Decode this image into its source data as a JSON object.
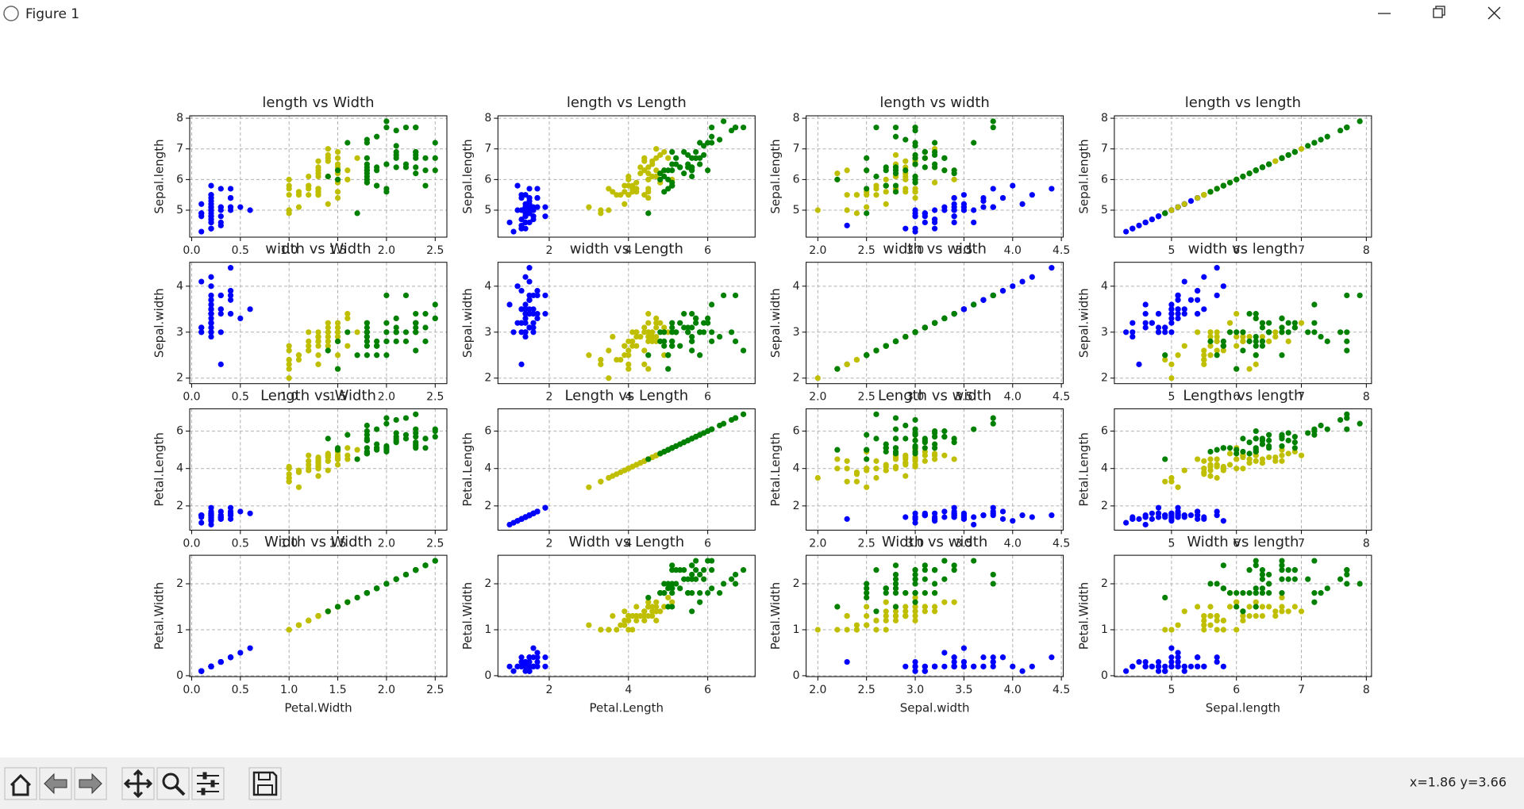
{
  "window": {
    "title": "Figure 1"
  },
  "toolbar": {
    "status": "x=1.86 y=3.66"
  },
  "colors": [
    "#0000ff",
    "#bfbf00",
    "#008000"
  ],
  "variables": [
    {
      "name": "Sepal.length",
      "series": [
        [
          5.1,
          4.9,
          4.7,
          4.6,
          5.0,
          5.4,
          4.6,
          5.0,
          4.4,
          4.9,
          5.4,
          4.8,
          4.8,
          4.3,
          5.8,
          5.7,
          5.4,
          5.1,
          5.7,
          5.1,
          5.4,
          5.1,
          4.6,
          5.1,
          4.8,
          5.0,
          5.0,
          5.2,
          5.2,
          4.7,
          4.8,
          5.4,
          5.2,
          5.5,
          4.9,
          5.0,
          5.5,
          4.9,
          4.4,
          5.1,
          5.0,
          4.5,
          4.4,
          5.0,
          5.1,
          4.8,
          5.1,
          4.6,
          5.3,
          5.0
        ],
        [
          7.0,
          6.4,
          6.9,
          5.5,
          6.5,
          5.7,
          6.3,
          4.9,
          6.6,
          5.2,
          5.0,
          5.9,
          6.0,
          6.1,
          5.6,
          6.7,
          5.6,
          5.8,
          6.2,
          5.6,
          5.9,
          6.1,
          6.3,
          6.1,
          6.4,
          6.6,
          6.8,
          6.7,
          6.0,
          5.7,
          5.5,
          5.5,
          5.8,
          6.0,
          5.4,
          6.0,
          6.7,
          6.3,
          5.6,
          5.5,
          5.5,
          6.1,
          5.8,
          5.0,
          5.6,
          5.7,
          5.7,
          6.2,
          5.1,
          5.7
        ],
        [
          6.3,
          5.8,
          7.1,
          6.3,
          6.5,
          7.6,
          4.9,
          7.3,
          6.7,
          7.2,
          6.5,
          6.4,
          6.8,
          5.7,
          5.8,
          6.4,
          6.5,
          7.7,
          7.7,
          6.0,
          6.9,
          5.6,
          7.7,
          6.3,
          6.7,
          7.2,
          6.2,
          6.1,
          6.4,
          7.2,
          7.4,
          7.9,
          6.4,
          6.3,
          6.1,
          7.7,
          6.3,
          6.4,
          6.0,
          6.9,
          6.7,
          6.9,
          5.8,
          6.8,
          6.7,
          6.7,
          6.3,
          6.5,
          6.2,
          5.9
        ]
      ]
    },
    {
      "name": "Sepal.width",
      "series": [
        [
          3.5,
          3.0,
          3.2,
          3.1,
          3.6,
          3.9,
          3.4,
          3.4,
          2.9,
          3.1,
          3.7,
          3.4,
          3.0,
          3.0,
          4.0,
          4.4,
          3.9,
          3.5,
          3.8,
          3.8,
          3.4,
          3.7,
          3.6,
          3.3,
          3.4,
          3.0,
          3.4,
          3.5,
          3.4,
          3.2,
          3.1,
          3.4,
          4.1,
          4.2,
          3.1,
          3.2,
          3.5,
          3.1,
          3.0,
          3.4,
          3.5,
          2.3,
          3.2,
          3.5,
          3.8,
          3.0,
          3.8,
          3.2,
          3.7,
          3.3
        ],
        [
          3.2,
          3.2,
          3.1,
          2.3,
          2.8,
          2.8,
          3.3,
          2.4,
          2.9,
          2.7,
          2.0,
          3.0,
          2.2,
          2.9,
          2.9,
          3.1,
          3.0,
          2.7,
          2.2,
          2.5,
          3.2,
          2.8,
          2.5,
          2.8,
          2.9,
          3.0,
          2.8,
          3.0,
          2.9,
          2.6,
          2.4,
          2.4,
          2.7,
          2.7,
          3.0,
          3.4,
          3.1,
          2.3,
          3.0,
          2.5,
          2.6,
          3.0,
          2.6,
          2.3,
          2.7,
          3.0,
          2.9,
          2.9,
          2.5,
          2.8
        ],
        [
          3.3,
          2.7,
          3.0,
          2.9,
          3.0,
          3.0,
          2.5,
          2.9,
          2.5,
          3.6,
          3.2,
          2.7,
          3.0,
          2.5,
          2.8,
          3.2,
          3.0,
          3.8,
          2.6,
          2.2,
          3.2,
          2.8,
          2.8,
          2.7,
          3.3,
          3.2,
          2.8,
          3.0,
          2.8,
          3.0,
          2.8,
          3.8,
          2.8,
          2.8,
          2.6,
          3.0,
          3.4,
          3.1,
          3.0,
          3.1,
          3.1,
          3.1,
          2.7,
          3.2,
          3.3,
          3.0,
          2.5,
          3.0,
          3.4,
          3.0
        ]
      ]
    },
    {
      "name": "Petal.Length",
      "series": [
        [
          1.4,
          1.4,
          1.3,
          1.5,
          1.4,
          1.7,
          1.4,
          1.5,
          1.4,
          1.5,
          1.5,
          1.6,
          1.4,
          1.1,
          1.2,
          1.5,
          1.3,
          1.4,
          1.7,
          1.5,
          1.7,
          1.5,
          1.0,
          1.7,
          1.9,
          1.6,
          1.6,
          1.5,
          1.4,
          1.6,
          1.6,
          1.5,
          1.5,
          1.4,
          1.5,
          1.2,
          1.3,
          1.5,
          1.3,
          1.5,
          1.3,
          1.3,
          1.3,
          1.6,
          1.9,
          1.4,
          1.6,
          1.4,
          1.5,
          1.4
        ],
        [
          4.7,
          4.5,
          4.9,
          4.0,
          4.6,
          4.5,
          4.7,
          3.3,
          4.6,
          3.9,
          3.5,
          4.2,
          4.0,
          4.7,
          3.6,
          4.4,
          4.5,
          4.1,
          4.5,
          3.9,
          4.8,
          4.0,
          4.9,
          4.7,
          4.3,
          4.4,
          4.8,
          5.0,
          4.5,
          3.5,
          3.8,
          3.7,
          3.9,
          5.1,
          4.5,
          4.5,
          4.7,
          4.4,
          4.1,
          4.0,
          4.4,
          4.6,
          4.0,
          3.3,
          4.2,
          4.2,
          4.2,
          4.3,
          3.0,
          4.1
        ],
        [
          6.0,
          5.1,
          5.9,
          5.6,
          5.8,
          6.6,
          4.5,
          6.3,
          5.8,
          6.1,
          5.1,
          5.3,
          5.5,
          5.0,
          5.1,
          5.3,
          5.5,
          6.7,
          6.9,
          5.0,
          5.7,
          4.9,
          6.7,
          4.9,
          5.7,
          6.0,
          4.8,
          4.9,
          5.6,
          5.8,
          6.1,
          6.4,
          5.6,
          5.1,
          5.6,
          6.1,
          5.6,
          5.5,
          4.8,
          5.4,
          5.6,
          5.1,
          5.1,
          5.9,
          5.7,
          5.2,
          5.0,
          5.2,
          5.4,
          5.1
        ]
      ]
    },
    {
      "name": "Petal.Width",
      "series": [
        [
          0.2,
          0.2,
          0.2,
          0.2,
          0.2,
          0.4,
          0.3,
          0.2,
          0.2,
          0.1,
          0.2,
          0.2,
          0.1,
          0.1,
          0.2,
          0.4,
          0.4,
          0.3,
          0.3,
          0.3,
          0.2,
          0.4,
          0.2,
          0.5,
          0.2,
          0.2,
          0.4,
          0.2,
          0.2,
          0.2,
          0.2,
          0.4,
          0.1,
          0.2,
          0.1,
          0.2,
          0.2,
          0.1,
          0.2,
          0.2,
          0.3,
          0.3,
          0.2,
          0.6,
          0.4,
          0.3,
          0.2,
          0.2,
          0.2,
          0.2
        ],
        [
          1.4,
          1.5,
          1.5,
          1.3,
          1.5,
          1.3,
          1.6,
          1.0,
          1.3,
          1.4,
          1.0,
          1.5,
          1.0,
          1.4,
          1.3,
          1.4,
          1.5,
          1.0,
          1.5,
          1.1,
          1.8,
          1.3,
          1.5,
          1.2,
          1.3,
          1.4,
          1.4,
          1.7,
          1.5,
          1.0,
          1.1,
          1.0,
          1.2,
          1.6,
          1.5,
          1.6,
          1.5,
          1.3,
          1.3,
          1.3,
          1.2,
          1.4,
          1.2,
          1.0,
          1.3,
          1.2,
          1.3,
          1.3,
          1.1,
          1.3
        ],
        [
          2.5,
          1.9,
          2.1,
          1.8,
          2.2,
          2.1,
          1.7,
          1.8,
          1.8,
          2.5,
          2.0,
          1.9,
          2.1,
          2.0,
          2.4,
          2.3,
          1.8,
          2.2,
          2.3,
          1.5,
          2.3,
          2.0,
          2.0,
          1.8,
          2.1,
          1.8,
          1.8,
          1.8,
          2.1,
          1.6,
          1.9,
          2.0,
          2.2,
          1.5,
          1.4,
          2.3,
          2.4,
          1.8,
          1.8,
          2.1,
          2.4,
          2.3,
          1.9,
          2.3,
          2.5,
          2.3,
          1.9,
          2.0,
          2.3,
          1.8
        ]
      ]
    }
  ],
  "chart_data": [
    {
      "type": "scatter",
      "title": "length vs Width",
      "ylabel": "Sepal.length",
      "grid": true,
      "xlim": [
        -0.02,
        2.62
      ],
      "xticks": [
        {
          "value": 0,
          "label": "0.0"
        },
        0.5,
        {
          "value": 1,
          "label": "1.0"
        },
        1.5,
        {
          "value": 2,
          "label": "2.0"
        },
        2.5
      ],
      "ylim": [
        4.12,
        8.08
      ],
      "yticks": [
        5,
        6,
        7,
        8
      ]
    },
    {
      "type": "scatter",
      "title": "length vs Length",
      "ylabel": "Sepal.length",
      "grid": true,
      "xlim": [
        0.705,
        7.195
      ],
      "xticks": [
        2,
        4,
        6
      ],
      "ylim": [
        4.12,
        8.08
      ],
      "yticks": [
        5,
        6,
        7,
        8
      ]
    },
    {
      "type": "scatter",
      "title": "length vs width",
      "ylabel": "Sepal.length",
      "grid": true,
      "xlim": [
        1.88,
        4.52
      ],
      "xticks": [
        {
          "value": 2,
          "label": "2.0"
        },
        2.5,
        {
          "value": 3,
          "label": "3.0"
        },
        3.5,
        {
          "value": 4,
          "label": "4.0"
        },
        4.5
      ],
      "ylim": [
        4.12,
        8.08
      ],
      "yticks": [
        5,
        6,
        7,
        8
      ]
    },
    {
      "type": "scatter",
      "title": "length vs length",
      "ylabel": "Sepal.length",
      "grid": true,
      "xlim": [
        4.12,
        8.08
      ],
      "xticks": [
        5,
        6,
        7,
        8
      ],
      "ylim": [
        4.12,
        8.08
      ],
      "yticks": [
        5,
        6,
        7,
        8
      ]
    },
    {
      "type": "scatter",
      "title": "width vs Width",
      "ylabel": "Sepal.width",
      "grid": true,
      "xlim": [
        -0.02,
        2.62
      ],
      "xticks": [
        {
          "value": 0,
          "label": "0.0"
        },
        0.5,
        {
          "value": 1,
          "label": "1.0"
        },
        1.5,
        {
          "value": 2,
          "label": "2.0"
        },
        2.5
      ],
      "ylim": [
        1.88,
        4.52
      ],
      "yticks": [
        2,
        3,
        4
      ]
    },
    {
      "type": "scatter",
      "title": "width vs Length",
      "ylabel": "Sepal.width",
      "grid": true,
      "xlim": [
        0.705,
        7.195
      ],
      "xticks": [
        2,
        4,
        6
      ],
      "ylim": [
        1.88,
        4.52
      ],
      "yticks": [
        2,
        3,
        4
      ]
    },
    {
      "type": "scatter",
      "title": "width vs width",
      "ylabel": "Sepal.width",
      "grid": true,
      "xlim": [
        1.88,
        4.52
      ],
      "xticks": [
        {
          "value": 2,
          "label": "2.0"
        },
        2.5,
        {
          "value": 3,
          "label": "3.0"
        },
        3.5,
        {
          "value": 4,
          "label": "4.0"
        },
        4.5
      ],
      "ylim": [
        1.88,
        4.52
      ],
      "yticks": [
        2,
        3,
        4
      ]
    },
    {
      "type": "scatter",
      "title": "width vs length",
      "ylabel": "Sepal.width",
      "grid": true,
      "xlim": [
        4.12,
        8.08
      ],
      "xticks": [
        5,
        6,
        7,
        8
      ],
      "ylim": [
        1.88,
        4.52
      ],
      "yticks": [
        2,
        3,
        4
      ]
    },
    {
      "type": "scatter",
      "title": "Length vs Width",
      "ylabel": "Petal.Length",
      "grid": true,
      "xlim": [
        -0.02,
        2.62
      ],
      "xticks": [
        {
          "value": 0,
          "label": "0.0"
        },
        0.5,
        {
          "value": 1,
          "label": "1.0"
        },
        1.5,
        {
          "value": 2,
          "label": "2.0"
        },
        2.5
      ],
      "ylim": [
        0.705,
        7.195
      ],
      "yticks": [
        2,
        4,
        6
      ]
    },
    {
      "type": "scatter",
      "title": "Length vs Length",
      "ylabel": "Petal.Length",
      "grid": true,
      "xlim": [
        0.705,
        7.195
      ],
      "xticks": [
        2,
        4,
        6
      ],
      "ylim": [
        0.705,
        7.195
      ],
      "yticks": [
        2,
        4,
        6
      ]
    },
    {
      "type": "scatter",
      "title": "Length vs width",
      "ylabel": "Petal.Length",
      "grid": true,
      "xlim": [
        1.88,
        4.52
      ],
      "xticks": [
        {
          "value": 2,
          "label": "2.0"
        },
        2.5,
        {
          "value": 3,
          "label": "3.0"
        },
        3.5,
        {
          "value": 4,
          "label": "4.0"
        },
        4.5
      ],
      "ylim": [
        0.705,
        7.195
      ],
      "yticks": [
        2,
        4,
        6
      ]
    },
    {
      "type": "scatter",
      "title": "Length vs length",
      "ylabel": "Petal.Length",
      "grid": true,
      "xlim": [
        4.12,
        8.08
      ],
      "xticks": [
        5,
        6,
        7,
        8
      ],
      "ylim": [
        0.705,
        7.195
      ],
      "yticks": [
        2,
        4,
        6
      ]
    },
    {
      "type": "scatter",
      "title": "Width vs Width",
      "ylabel": "Petal.Width",
      "xlabel": "Petal.Width",
      "grid": true,
      "xlim": [
        -0.02,
        2.62
      ],
      "xticks": [
        {
          "value": 0,
          "label": "0.0"
        },
        0.5,
        {
          "value": 1,
          "label": "1.0"
        },
        1.5,
        {
          "value": 2,
          "label": "2.0"
        },
        2.5
      ],
      "ylim": [
        -0.02,
        2.62
      ],
      "yticks": [
        0,
        1,
        2
      ]
    },
    {
      "type": "scatter",
      "title": "Width vs Length",
      "ylabel": "Petal.Width",
      "xlabel": "Petal.Length",
      "grid": true,
      "xlim": [
        0.705,
        7.195
      ],
      "xticks": [
        2,
        4,
        6
      ],
      "ylim": [
        -0.02,
        2.62
      ],
      "yticks": [
        0,
        1,
        2
      ]
    },
    {
      "type": "scatter",
      "title": "Width vs width",
      "ylabel": "Petal.Width",
      "xlabel": "Sepal.width",
      "grid": true,
      "xlim": [
        1.88,
        4.52
      ],
      "xticks": [
        {
          "value": 2,
          "label": "2.0"
        },
        2.5,
        {
          "value": 3,
          "label": "3.0"
        },
        3.5,
        {
          "value": 4,
          "label": "4.0"
        },
        4.5
      ],
      "ylim": [
        -0.02,
        2.62
      ],
      "yticks": [
        0,
        1,
        2
      ]
    },
    {
      "type": "scatter",
      "title": "Width vs length",
      "ylabel": "Petal.Width",
      "xlabel": "Sepal.length",
      "grid": true,
      "xlim": [
        4.12,
        8.08
      ],
      "xticks": [
        5,
        6,
        7,
        8
      ],
      "ylim": [
        -0.02,
        2.62
      ],
      "yticks": [
        0,
        1,
        2
      ]
    }
  ]
}
